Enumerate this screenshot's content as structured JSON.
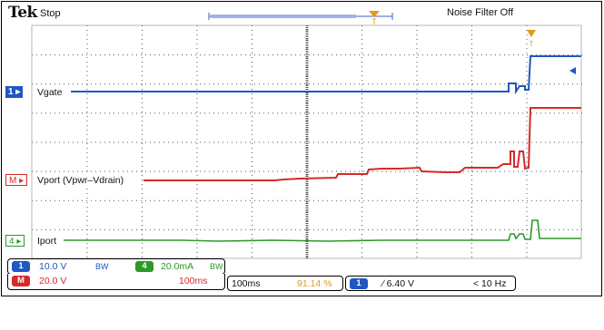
{
  "header": {
    "brand": "Tek",
    "run_state": "Stop",
    "noise_filter": "Noise Filter Off",
    "trigger_marker": "T"
  },
  "channels": {
    "ch1": {
      "marker": "1",
      "name": "Vgate",
      "color": "#1f57c3"
    },
    "math": {
      "marker": "M",
      "name": "Vport (Vpwr–Vdrain)",
      "color": "#d62a2a"
    },
    "ch4": {
      "marker": "4",
      "name": "Iport",
      "color": "#2a9a2a"
    }
  },
  "readout": {
    "ch1_chip": "1",
    "ch1_scale": "10.0 V",
    "ch1_bw": "BW",
    "ch4_chip": "4",
    "ch4_scale": "20.0mA",
    "ch4_bw": "BW",
    "math_chip": "M",
    "math_scale": "20.0 V",
    "math_time": "100ms",
    "timebase": "100ms",
    "record_pos": "91.14 %",
    "trig_chip": "1",
    "trig_level": "∕ 6.40 V",
    "trig_freq": "< 10 Hz"
  },
  "colors": {
    "grid": "#555555",
    "ch1": "#1f57c3",
    "math": "#d62a2a",
    "ch4": "#2a9a2a",
    "trigger": "#e39a16",
    "record_pos_text": "#e39a16"
  }
}
